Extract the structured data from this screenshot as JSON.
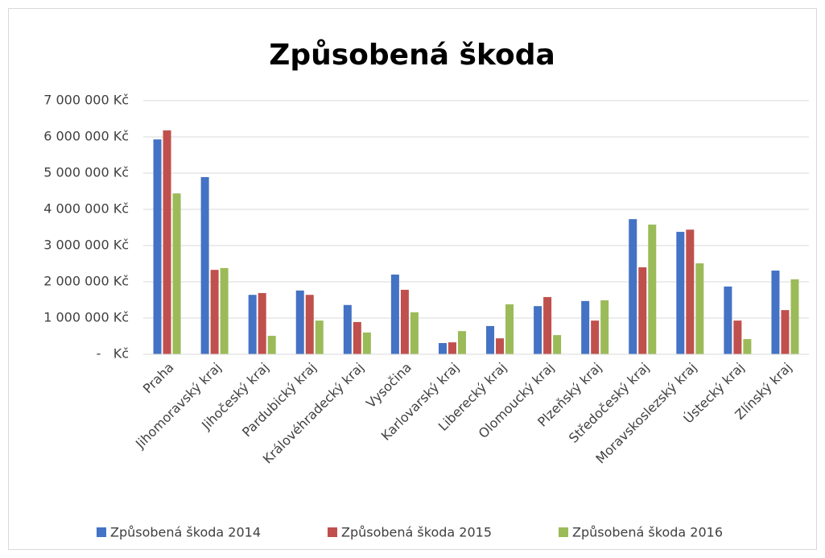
{
  "chart_data": {
    "type": "bar",
    "title": "Způsobená škoda",
    "categories": [
      "Praha",
      "Jihomoravský kraj",
      "Jihočeský kraj",
      "Pardubický kraj",
      "Královéhradecký kraj",
      "Vysočina",
      "Karlovarský kraj",
      "Liberecký kraj",
      "Olomoucký kraj",
      "Plzeňský kraj",
      "Středočeský kraj",
      "Moravskoslezský kraj",
      "Ústecký kraj",
      "Zlínský kraj"
    ],
    "series": [
      {
        "name": "Způsobená škoda 2014",
        "color": "#4472c4",
        "values": [
          5930000,
          4890000,
          1640000,
          1760000,
          1360000,
          2200000,
          310000,
          780000,
          1330000,
          1470000,
          3730000,
          3380000,
          1870000,
          2310000
        ]
      },
      {
        "name": "Způsobená škoda 2015",
        "color": "#c0504d",
        "values": [
          6180000,
          2330000,
          1690000,
          1640000,
          890000,
          1780000,
          330000,
          440000,
          1580000,
          930000,
          2400000,
          3440000,
          930000,
          1220000
        ]
      },
      {
        "name": "Způsobená škoda 2016",
        "color": "#9bbb59",
        "values": [
          4440000,
          2380000,
          510000,
          930000,
          600000,
          1160000,
          640000,
          1380000,
          530000,
          1490000,
          3580000,
          2510000,
          420000,
          2070000
        ]
      }
    ],
    "ylim": [
      0,
      7000000
    ],
    "yticks": [
      {
        "value": 0,
        "label": "-   Kč"
      },
      {
        "value": 1000000,
        "label": "1 000 000 Kč"
      },
      {
        "value": 2000000,
        "label": "2 000 000 Kč"
      },
      {
        "value": 3000000,
        "label": "3 000 000 Kč"
      },
      {
        "value": 4000000,
        "label": "4 000 000 Kč"
      },
      {
        "value": 5000000,
        "label": "5 000 000 Kč"
      },
      {
        "value": 6000000,
        "label": "6 000 000 Kč"
      },
      {
        "value": 7000000,
        "label": "7 000 000 Kč"
      }
    ],
    "grid": true,
    "legend": "bottom"
  }
}
